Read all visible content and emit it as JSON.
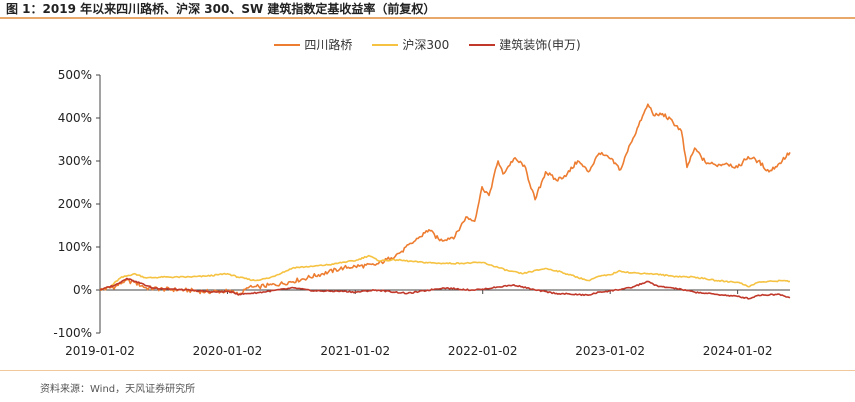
{
  "title": "图 1：2019 年以来四川路桥、沪深 300、SW 建筑指数定基收益率（前复权）",
  "source": "资料来源：Wind，天风证券研究所",
  "chart_data": {
    "type": "line",
    "title": "",
    "xlabel": "",
    "ylabel": "",
    "ylim": [
      -100,
      500
    ],
    "y_ticks": [
      "500%",
      "400%",
      "300%",
      "200%",
      "100%",
      "0%",
      "-100%"
    ],
    "y_tick_values": [
      500,
      400,
      300,
      200,
      100,
      0,
      -100
    ],
    "xlim": [
      "2019-01-02",
      "2024-05-31"
    ],
    "x_ticks": [
      "2019-01-02",
      "2020-01-02",
      "2021-01-02",
      "2022-01-02",
      "2023-01-02",
      "2024-01-02"
    ],
    "grid": false,
    "legend_position": "top-center",
    "series": [
      {
        "name": "四川路桥",
        "color": "#ed7d31",
        "points": [
          [
            "2019-01-02",
            0
          ],
          [
            "2019-02-15",
            8
          ],
          [
            "2019-03-15",
            22
          ],
          [
            "2019-04-10",
            18
          ],
          [
            "2019-05-15",
            5
          ],
          [
            "2019-07-01",
            2
          ],
          [
            "2019-09-01",
            0
          ],
          [
            "2019-11-01",
            -4
          ],
          [
            "2020-01-02",
            -3
          ],
          [
            "2020-02-10",
            -8
          ],
          [
            "2020-03-01",
            5
          ],
          [
            "2020-04-01",
            8
          ],
          [
            "2020-06-01",
            14
          ],
          [
            "2020-08-01",
            25
          ],
          [
            "2020-10-01",
            38
          ],
          [
            "2020-12-01",
            52
          ],
          [
            "2021-01-02",
            55
          ],
          [
            "2021-03-01",
            58
          ],
          [
            "2021-04-15",
            75
          ],
          [
            "2021-05-15",
            90
          ],
          [
            "2021-07-01",
            120
          ],
          [
            "2021-08-01",
            140
          ],
          [
            "2021-09-01",
            115
          ],
          [
            "2021-10-15",
            125
          ],
          [
            "2021-11-15",
            170
          ],
          [
            "2021-12-10",
            160
          ],
          [
            "2021-12-31",
            240
          ],
          [
            "2022-01-20",
            220
          ],
          [
            "2022-02-15",
            300
          ],
          [
            "2022-03-01",
            270
          ],
          [
            "2022-04-01",
            305
          ],
          [
            "2022-05-01",
            290
          ],
          [
            "2022-06-01",
            210
          ],
          [
            "2022-07-01",
            275
          ],
          [
            "2022-08-01",
            255
          ],
          [
            "2022-09-01",
            270
          ],
          [
            "2022-10-01",
            300
          ],
          [
            "2022-11-01",
            275
          ],
          [
            "2022-12-01",
            318
          ],
          [
            "2023-01-02",
            305
          ],
          [
            "2023-02-01",
            280
          ],
          [
            "2023-03-01",
            340
          ],
          [
            "2023-04-01",
            395
          ],
          [
            "2023-04-20",
            432
          ],
          [
            "2023-05-10",
            405
          ],
          [
            "2023-06-01",
            410
          ],
          [
            "2023-07-01",
            390
          ],
          [
            "2023-07-25",
            370
          ],
          [
            "2023-08-10",
            285
          ],
          [
            "2023-09-01",
            330
          ],
          [
            "2023-10-01",
            298
          ],
          [
            "2023-11-01",
            290
          ],
          [
            "2023-12-01",
            295
          ],
          [
            "2024-01-02",
            285
          ],
          [
            "2024-02-01",
            310
          ],
          [
            "2024-03-01",
            300
          ],
          [
            "2024-04-01",
            275
          ],
          [
            "2024-05-01",
            295
          ],
          [
            "2024-05-31",
            320
          ]
        ]
      },
      {
        "name": "沪深300",
        "color": "#f5c242",
        "points": [
          [
            "2019-01-02",
            0
          ],
          [
            "2019-02-01",
            8
          ],
          [
            "2019-03-01",
            28
          ],
          [
            "2019-04-10",
            38
          ],
          [
            "2019-05-15",
            28
          ],
          [
            "2019-07-01",
            30
          ],
          [
            "2019-09-01",
            30
          ],
          [
            "2019-11-01",
            32
          ],
          [
            "2020-01-02",
            38
          ],
          [
            "2020-02-01",
            30
          ],
          [
            "2020-03-20",
            22
          ],
          [
            "2020-05-01",
            28
          ],
          [
            "2020-07-10",
            52
          ],
          [
            "2020-09-01",
            55
          ],
          [
            "2020-11-01",
            60
          ],
          [
            "2020-12-01",
            65
          ],
          [
            "2021-01-02",
            68
          ],
          [
            "2021-02-10",
            80
          ],
          [
            "2021-03-10",
            68
          ],
          [
            "2021-05-01",
            70
          ],
          [
            "2021-07-01",
            65
          ],
          [
            "2021-09-01",
            62
          ],
          [
            "2021-11-01",
            62
          ],
          [
            "2022-01-02",
            64
          ],
          [
            "2022-03-15",
            45
          ],
          [
            "2022-04-25",
            38
          ],
          [
            "2022-06-30",
            50
          ],
          [
            "2022-08-01",
            45
          ],
          [
            "2022-10-31",
            22
          ],
          [
            "2022-12-01",
            32
          ],
          [
            "2023-01-02",
            35
          ],
          [
            "2023-01-28",
            45
          ],
          [
            "2023-03-01",
            40
          ],
          [
            "2023-05-01",
            38
          ],
          [
            "2023-07-01",
            32
          ],
          [
            "2023-09-01",
            30
          ],
          [
            "2023-11-01",
            22
          ],
          [
            "2024-01-02",
            18
          ],
          [
            "2024-02-05",
            8
          ],
          [
            "2024-03-01",
            18
          ],
          [
            "2024-05-15",
            22
          ],
          [
            "2024-05-31",
            20
          ]
        ]
      },
      {
        "name": "建筑装饰(申万)",
        "color": "#c0392b",
        "points": [
          [
            "2019-01-02",
            0
          ],
          [
            "2019-02-15",
            12
          ],
          [
            "2019-03-20",
            27
          ],
          [
            "2019-04-15",
            20
          ],
          [
            "2019-06-01",
            5
          ],
          [
            "2019-09-01",
            0
          ],
          [
            "2019-12-01",
            -5
          ],
          [
            "2020-01-02",
            -3
          ],
          [
            "2020-02-05",
            -10
          ],
          [
            "2020-04-01",
            -6
          ],
          [
            "2020-07-10",
            5
          ],
          [
            "2020-09-01",
            -2
          ],
          [
            "2020-12-01",
            -3
          ],
          [
            "2021-01-02",
            -5
          ],
          [
            "2021-03-01",
            0
          ],
          [
            "2021-06-01",
            -8
          ],
          [
            "2021-09-10",
            5
          ],
          [
            "2021-12-01",
            0
          ],
          [
            "2022-01-02",
            2
          ],
          [
            "2022-04-01",
            12
          ],
          [
            "2022-06-01",
            0
          ],
          [
            "2022-08-01",
            -8
          ],
          [
            "2022-10-31",
            -12
          ],
          [
            "2022-12-01",
            -5
          ],
          [
            "2023-01-02",
            -2
          ],
          [
            "2023-03-01",
            5
          ],
          [
            "2023-04-20",
            20
          ],
          [
            "2023-05-20",
            8
          ],
          [
            "2023-07-01",
            5
          ],
          [
            "2023-09-01",
            -5
          ],
          [
            "2023-11-01",
            -10
          ],
          [
            "2024-01-02",
            -15
          ],
          [
            "2024-02-05",
            -20
          ],
          [
            "2024-03-01",
            -12
          ],
          [
            "2024-05-01",
            -10
          ],
          [
            "2024-05-31",
            -18
          ]
        ]
      }
    ]
  }
}
